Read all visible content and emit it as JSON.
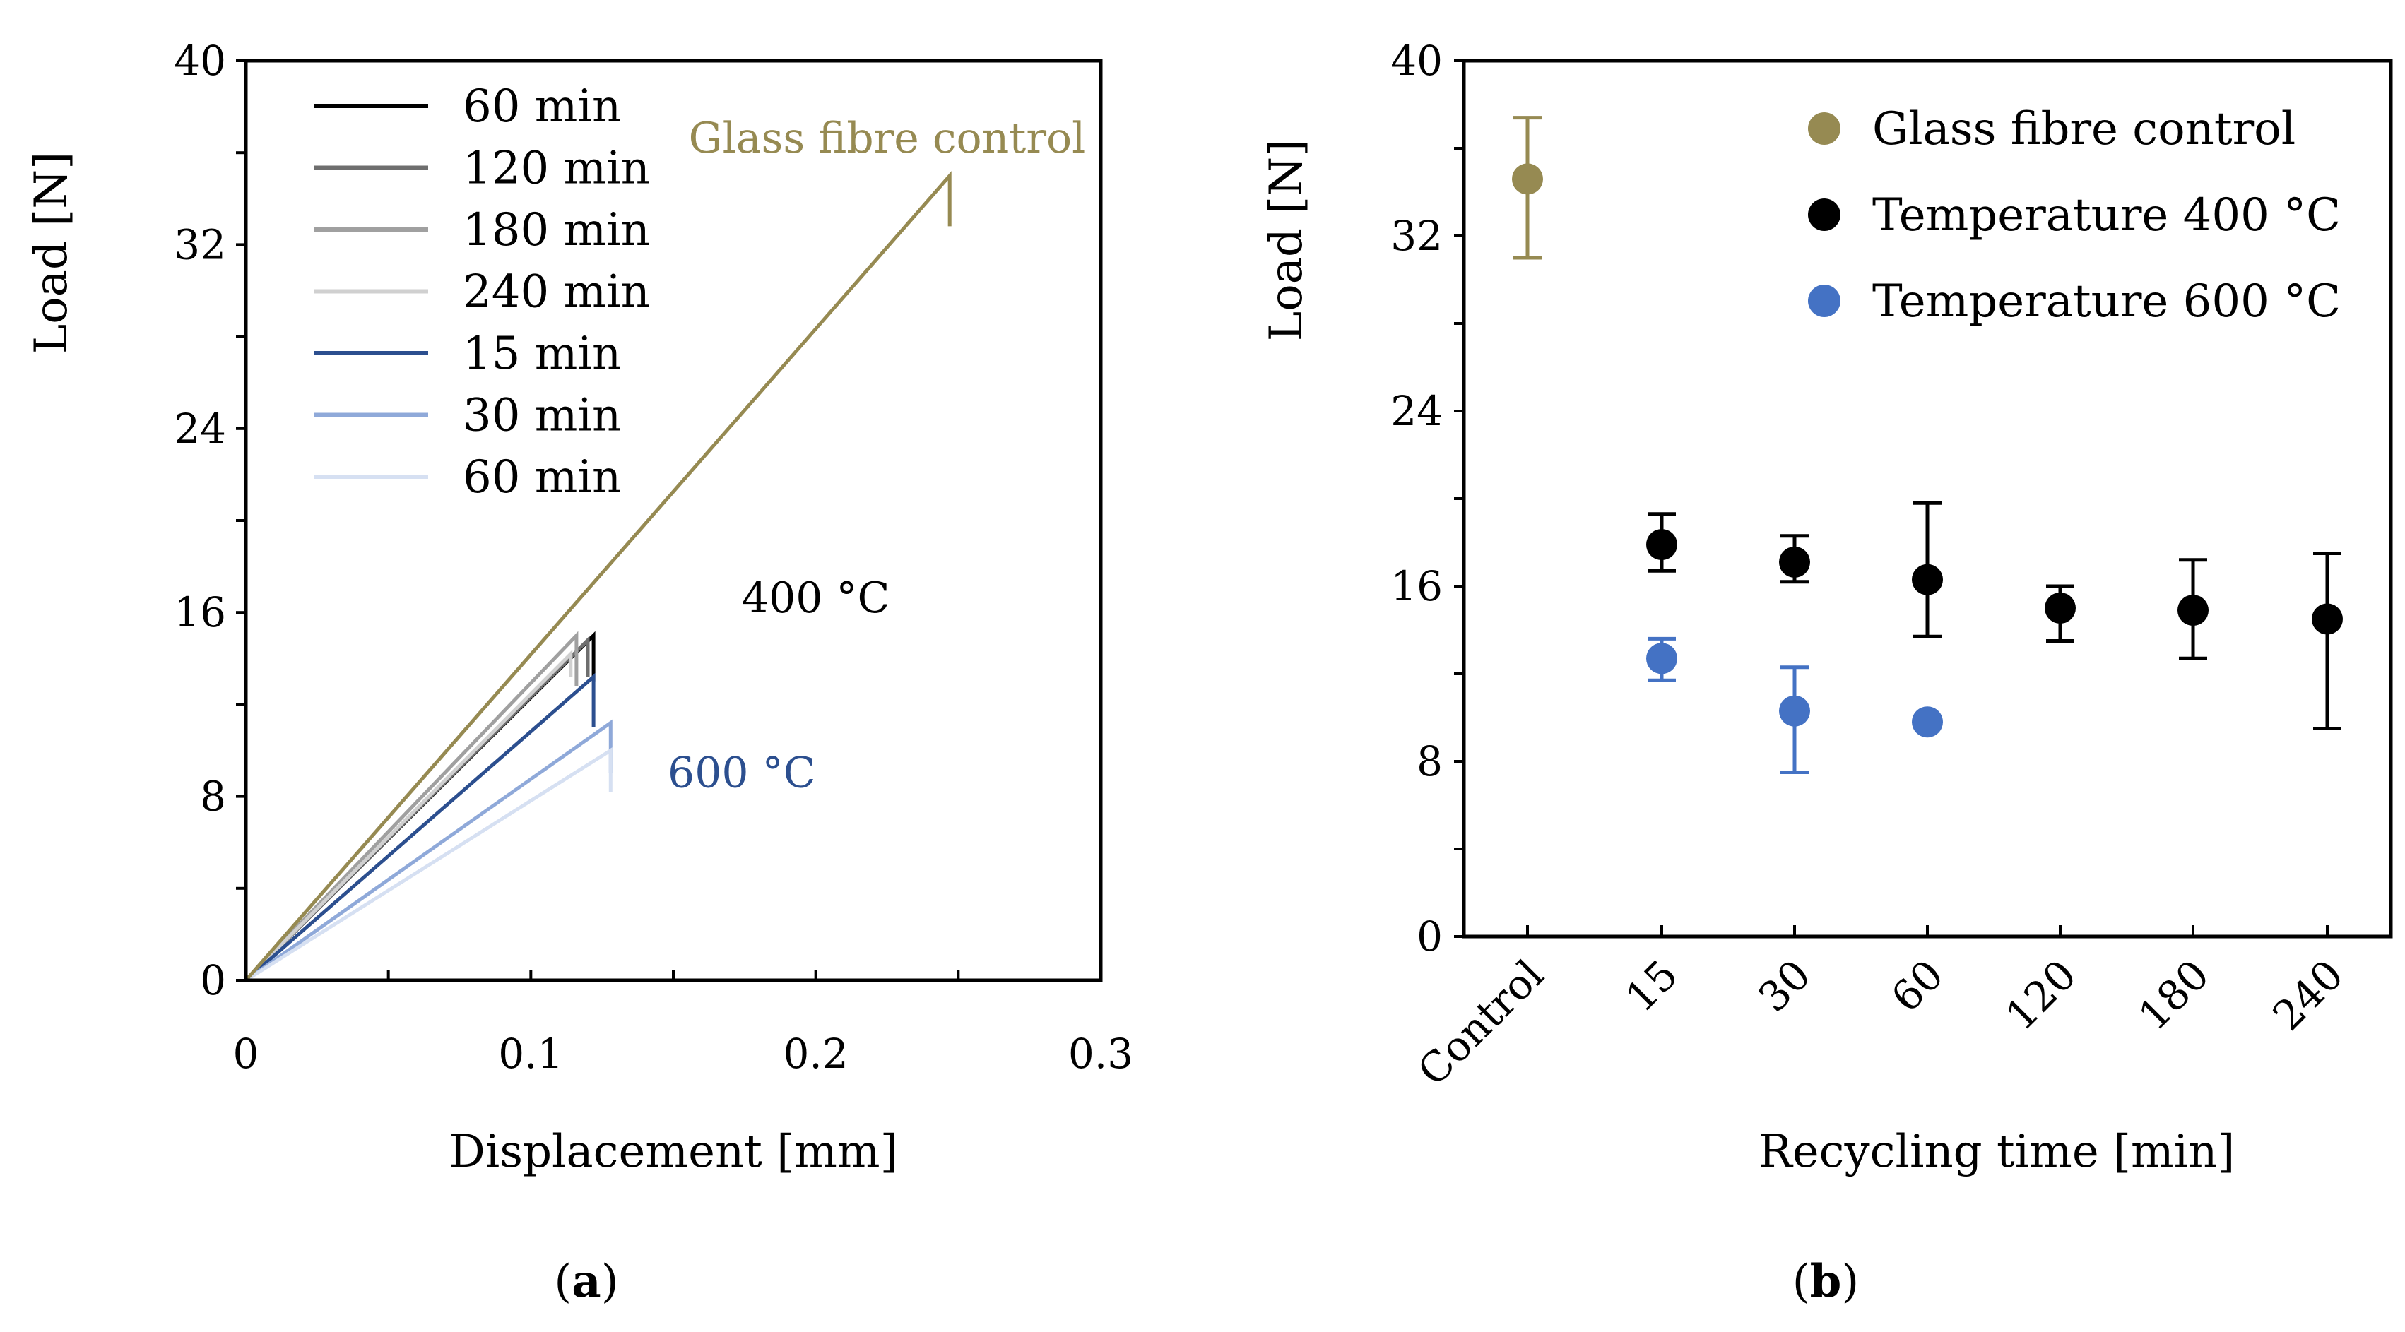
{
  "chart_data": [
    {
      "panel": "a",
      "panel_label": "a",
      "type": "line",
      "xlabel": "Displacement [mm]",
      "ylabel": "Load [N]",
      "xlim": [
        0,
        0.3
      ],
      "ylim": [
        0,
        40
      ],
      "xticks": [
        "0",
        "0.1",
        "0.2",
        "0.3"
      ],
      "yticks": [
        "0",
        "8",
        "16",
        "24",
        "32",
        "40"
      ],
      "legend_position": "top-left",
      "grid": false,
      "series": [
        {
          "name": "60 min",
          "group": "400 °C",
          "color": "#000000",
          "legend": true,
          "x": [
            0,
            0.122,
            0.122
          ],
          "y": [
            0,
            15.0,
            13.0
          ]
        },
        {
          "name": "120 min",
          "group": "400 °C",
          "color": "#6e6e6e",
          "legend": true,
          "x": [
            0,
            0.12,
            0.12
          ],
          "y": [
            0,
            14.8,
            13.2
          ]
        },
        {
          "name": "180 min",
          "group": "400 °C",
          "color": "#a0a0a0",
          "legend": true,
          "x": [
            0,
            0.116,
            0.116
          ],
          "y": [
            0,
            15.0,
            12.8
          ]
        },
        {
          "name": "240 min",
          "group": "400 °C",
          "color": "#d0d0d0",
          "legend": true,
          "x": [
            0,
            0.114,
            0.114
          ],
          "y": [
            0,
            14.2,
            13.2
          ]
        },
        {
          "name": "15 min",
          "group": "600 °C",
          "color": "#2c4f8f",
          "legend": true,
          "x": [
            0,
            0.122,
            0.122
          ],
          "y": [
            0,
            13.2,
            11.0
          ]
        },
        {
          "name": "30 min",
          "group": "600 °C",
          "color": "#8fa9d9",
          "legend": true,
          "x": [
            0,
            0.128,
            0.128
          ],
          "y": [
            0,
            11.2,
            9.0
          ]
        },
        {
          "name": "60 min",
          "group": "600 °C",
          "color": "#d6e0f2",
          "legend": true,
          "x": [
            0,
            0.128,
            0.128
          ],
          "y": [
            0,
            10.0,
            8.2
          ]
        },
        {
          "name": "Glass fibre control",
          "group": "control",
          "color": "#968a52",
          "legend": false,
          "x": [
            0,
            0.247,
            0.247
          ],
          "y": [
            0,
            35.0,
            32.8
          ]
        }
      ],
      "annotations": [
        {
          "text": "Glass fibre control",
          "color": "#968a52",
          "x": 0.225,
          "y": 36.0
        },
        {
          "text": "400 °C",
          "color": "#000000",
          "x": 0.2,
          "y": 16.0
        },
        {
          "text": "600 °C",
          "color": "#2c4f8f",
          "x": 0.174,
          "y": 8.4
        }
      ]
    },
    {
      "panel": "b",
      "panel_label": "b",
      "type": "scatter",
      "xlabel": "Recycling time [min]",
      "ylabel": "Load [N]",
      "categories": [
        "Control",
        "15",
        "30",
        "60",
        "120",
        "180",
        "240"
      ],
      "ylim": [
        0,
        40
      ],
      "yticks": [
        "0",
        "8",
        "16",
        "24",
        "32",
        "40"
      ],
      "legend_position": "top-right",
      "grid": false,
      "series": [
        {
          "name": "Glass fibre control",
          "color": "#968a52",
          "points": [
            {
              "category": "Control",
              "y": 34.6,
              "err_low": 31.0,
              "err_high": 37.4
            }
          ]
        },
        {
          "name": "Temperature 400 °C",
          "color": "#000000",
          "points": [
            {
              "category": "15",
              "y": 17.9,
              "err_low": 16.7,
              "err_high": 19.3
            },
            {
              "category": "30",
              "y": 17.1,
              "err_low": 16.2,
              "err_high": 18.3
            },
            {
              "category": "60",
              "y": 16.3,
              "err_low": 13.7,
              "err_high": 19.8
            },
            {
              "category": "120",
              "y": 15.0,
              "err_low": 13.5,
              "err_high": 16.0
            },
            {
              "category": "180",
              "y": 14.9,
              "err_low": 12.7,
              "err_high": 17.2
            },
            {
              "category": "240",
              "y": 14.5,
              "err_low": 9.5,
              "err_high": 17.5
            }
          ]
        },
        {
          "name": "Temperature 600 °C",
          "color": "#4472c4",
          "points": [
            {
              "category": "15",
              "y": 12.7,
              "err_low": 11.7,
              "err_high": 13.6
            },
            {
              "category": "30",
              "y": 10.3,
              "err_low": 7.5,
              "err_high": 12.3
            },
            {
              "category": "60",
              "y": 9.8,
              "err_low": null,
              "err_high": null
            }
          ]
        }
      ]
    }
  ]
}
